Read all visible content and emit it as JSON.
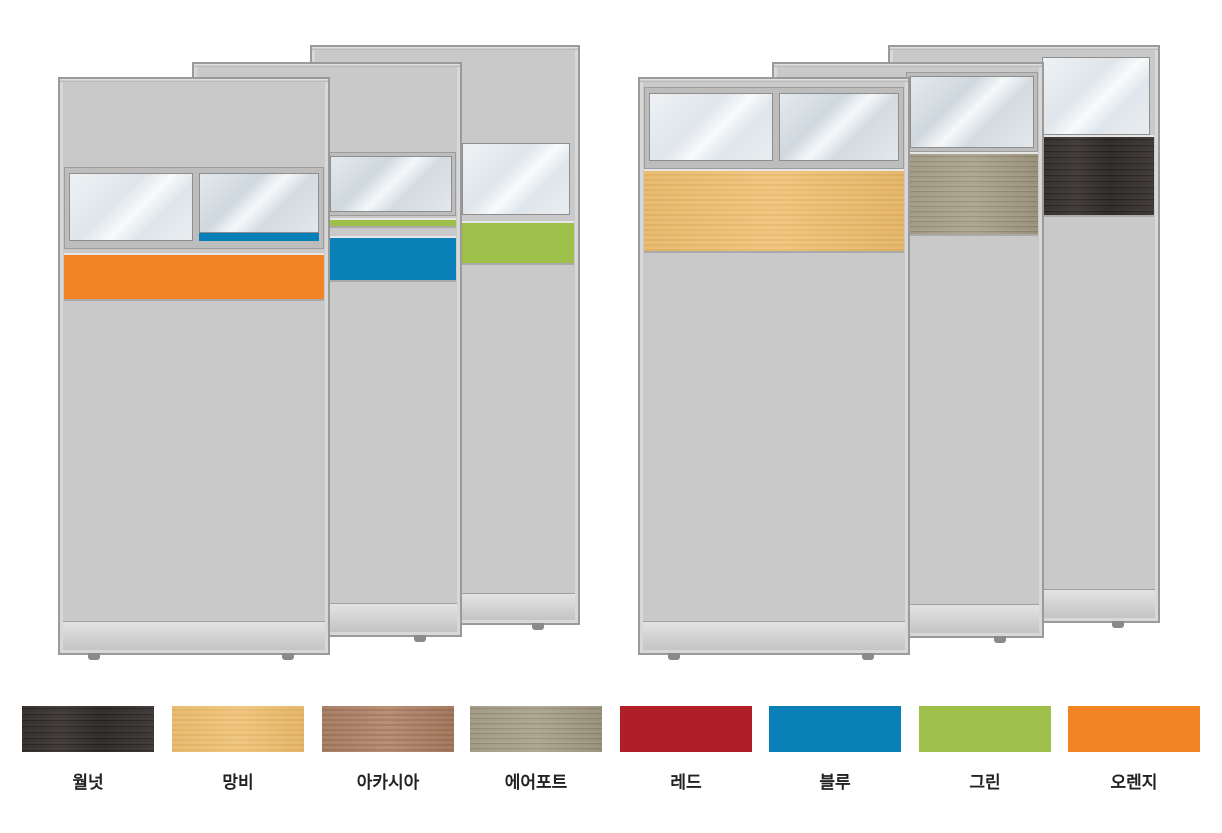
{
  "swatches": [
    {
      "label": "월넛",
      "color": "#36302e",
      "pattern": "wood-walnut"
    },
    {
      "label": "망비",
      "color": "#ebbe72",
      "pattern": "wood-maple"
    },
    {
      "label": "아카시아",
      "color": "#a87d63",
      "pattern": "wood-acacia"
    },
    {
      "label": "에어포트",
      "color": "#a09882",
      "pattern": "wood-airport"
    },
    {
      "label": "레드",
      "color": "#b01f27",
      "pattern": "solid"
    },
    {
      "label": "블루",
      "color": "#0a80b9",
      "pattern": "solid"
    },
    {
      "label": "그린",
      "color": "#9ec04a",
      "pattern": "solid"
    },
    {
      "label": "오렌지",
      "color": "#f28424",
      "pattern": "solid"
    }
  ],
  "colors": {
    "panel_fabric": "#c9c9c9",
    "frame": "#9a9a9a",
    "accent_orange": "#f28424",
    "accent_blue": "#0a80b9",
    "accent_green": "#9ec04a"
  }
}
